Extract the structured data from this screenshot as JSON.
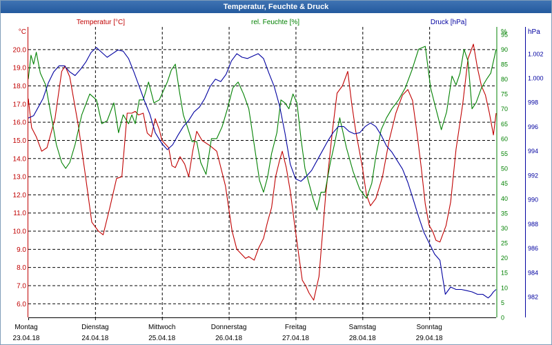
{
  "window": {
    "title": "Temperatur, Feuchte & Druck"
  },
  "colors": {
    "temperature": "#c00000",
    "humidity": "#008000",
    "pressure": "#0000a0",
    "grid": "#000000"
  },
  "chart_data": {
    "type": "line",
    "title": "Temperatur, Feuchte & Druck",
    "grid": true,
    "x_ticks": [
      {
        "day": "Montag",
        "date": "23.04.18"
      },
      {
        "day": "Dienstag",
        "date": "24.04.18"
      },
      {
        "day": "Mittwoch",
        "date": "25.04.18"
      },
      {
        "day": "Donnerstag",
        "date": "26.04.18"
      },
      {
        "day": "Freitag",
        "date": "27.04.18"
      },
      {
        "day": "Samstag",
        "date": "28.04.18"
      },
      {
        "day": "Sonntag",
        "date": "29.04.18"
      }
    ],
    "x_range_days": [
      0,
      7
    ],
    "axes": {
      "temperature": {
        "header": "Temperatur [°C]",
        "unit": "°C",
        "range": [
          5.25,
          21.25
        ],
        "ticks": [
          "6.0",
          "7.0",
          "8.0",
          "9.0",
          "10.0",
          "11.0",
          "12.0",
          "13.0",
          "14.0",
          "15.0",
          "16.0",
          "17.0",
          "18.0",
          "19.0",
          "20.0"
        ]
      },
      "humidity": {
        "header": "rel. Feuchte [%]",
        "unit": "%",
        "range": [
          0,
          97.5
        ],
        "ticks": [
          "0",
          "5",
          "10",
          "15",
          "20",
          "25",
          "30",
          "35",
          "40",
          "45",
          "50",
          "55",
          "60",
          "65",
          "70",
          "75",
          "80",
          "85",
          "90",
          "95"
        ]
      },
      "pressure": {
        "header": "Druck [hPa]",
        "unit": "hPa",
        "range": [
          980.3,
          1004.2
        ],
        "ticks": [
          "982",
          "984",
          "986",
          "988",
          "990",
          "992",
          "994",
          "996",
          "998",
          "1.000",
          "1.002"
        ]
      }
    },
    "series": [
      {
        "name": "Temperatur [°C]",
        "axis": "temperature",
        "x": [
          0,
          0.05,
          0.12,
          0.2,
          0.28,
          0.4,
          0.5,
          0.55,
          0.62,
          0.75,
          0.85,
          0.95,
          1.05,
          1.12,
          1.22,
          1.32,
          1.4,
          1.48,
          1.55,
          1.6,
          1.65,
          1.72,
          1.78,
          1.84,
          1.9,
          1.96,
          2.0,
          2.1,
          2.15,
          2.2,
          2.27,
          2.34,
          2.4,
          2.46,
          2.52,
          2.6,
          2.72,
          2.82,
          2.95,
          3.05,
          3.12,
          3.2,
          3.25,
          3.3,
          3.38,
          3.45,
          3.52,
          3.58,
          3.64,
          3.7,
          3.76,
          3.8,
          3.86,
          3.92,
          3.98,
          4.05,
          4.1,
          4.15,
          4.2,
          4.27,
          4.35,
          4.45,
          4.55,
          4.62,
          4.7,
          4.78,
          4.84,
          4.9,
          5.0,
          5.06,
          5.12,
          5.2,
          5.3,
          5.4,
          5.5,
          5.6,
          5.68,
          5.75,
          5.82,
          5.88,
          5.94,
          6.0,
          6.05,
          6.1,
          6.16,
          6.25,
          6.32,
          6.4,
          6.5,
          6.58,
          6.66,
          6.72,
          6.78,
          6.84,
          6.9,
          6.96,
          7.0
        ],
        "values": [
          17.3,
          15.7,
          15.2,
          14.4,
          14.6,
          16.2,
          18.8,
          19.1,
          18.5,
          15.8,
          13.2,
          10.5,
          10.0,
          9.8,
          11.3,
          12.9,
          13.0,
          16.5,
          16.5,
          16.6,
          16.4,
          16.5,
          15.4,
          15.2,
          16.2,
          15.6,
          15.0,
          14.6,
          13.6,
          13.5,
          14.1,
          13.7,
          13.0,
          14.4,
          15.5,
          15.0,
          14.7,
          14.4,
          12.5,
          10.0,
          9.0,
          8.7,
          8.5,
          8.6,
          8.4,
          9.1,
          9.6,
          10.5,
          11.3,
          13.0,
          13.9,
          14.4,
          13.5,
          12.2,
          10.5,
          8.6,
          7.3,
          7.0,
          6.6,
          6.2,
          7.5,
          12.0,
          15.5,
          17.6,
          18.0,
          18.8,
          17.0,
          15.5,
          13.5,
          12.0,
          11.4,
          11.8,
          13.0,
          15.0,
          16.5,
          17.5,
          17.8,
          17.2,
          15.3,
          13.5,
          11.5,
          10.3,
          10.0,
          9.5,
          9.4,
          10.3,
          11.6,
          14.5,
          17.0,
          19.5,
          20.3,
          19.0,
          18.0,
          17.5,
          16.5,
          15.3,
          16.5
        ]
      },
      {
        "name": "rel. Feuchte [%]",
        "axis": "humidity",
        "x": [
          0,
          0.04,
          0.08,
          0.12,
          0.18,
          0.26,
          0.34,
          0.42,
          0.5,
          0.56,
          0.62,
          0.7,
          0.8,
          0.92,
          1.02,
          1.1,
          1.18,
          1.28,
          1.35,
          1.42,
          1.5,
          1.55,
          1.6,
          1.66,
          1.72,
          1.8,
          1.88,
          1.96,
          2.02,
          2.08,
          2.14,
          2.2,
          2.26,
          2.32,
          2.38,
          2.45,
          2.52,
          2.58,
          2.66,
          2.74,
          2.82,
          2.9,
          2.98,
          3.06,
          3.14,
          3.22,
          3.3,
          3.38,
          3.46,
          3.52,
          3.58,
          3.64,
          3.72,
          3.78,
          3.84,
          3.9,
          3.96,
          4.02,
          4.08,
          4.14,
          4.2,
          4.26,
          4.32,
          4.38,
          4.44,
          4.52,
          4.58,
          4.66,
          4.76,
          4.86,
          4.96,
          5.06,
          5.14,
          5.2,
          5.28,
          5.36,
          5.44,
          5.54,
          5.64,
          5.74,
          5.84,
          5.94,
          6.02,
          6.1,
          6.18,
          6.26,
          6.34,
          6.4,
          6.46,
          6.52,
          6.58,
          6.64,
          6.7,
          6.78,
          6.86,
          6.92,
          6.98,
          7.0
        ],
        "values": [
          80,
          88,
          85,
          89,
          82,
          78,
          68,
          58,
          52,
          50,
          52,
          58,
          68,
          75,
          73,
          65,
          66,
          72,
          62,
          68,
          65,
          68,
          65,
          73,
          73,
          79,
          72,
          73,
          76,
          79,
          83,
          85,
          76,
          68,
          64,
          59,
          59,
          52,
          48,
          60,
          60,
          64,
          70,
          77,
          79,
          75,
          70,
          58,
          46,
          42,
          47,
          55,
          62,
          73,
          72,
          70,
          75,
          72,
          60,
          50,
          45,
          40,
          36,
          42,
          42,
          52,
          58,
          67,
          57,
          49,
          43,
          40,
          45,
          54,
          63,
          67,
          70,
          73,
          77,
          83,
          90,
          91,
          77,
          70,
          63,
          69,
          81,
          78,
          82,
          90,
          86,
          70,
          72,
          77,
          80,
          82,
          88,
          90
        ]
      },
      {
        "name": "Druck [hPa]",
        "axis": "pressure",
        "x": [
          0,
          0.08,
          0.15,
          0.22,
          0.3,
          0.38,
          0.46,
          0.54,
          0.62,
          0.7,
          0.78,
          0.86,
          0.94,
          1.02,
          1.1,
          1.18,
          1.26,
          1.34,
          1.42,
          1.5,
          1.58,
          1.66,
          1.74,
          1.82,
          1.9,
          2.0,
          2.08,
          2.16,
          2.24,
          2.32,
          2.4,
          2.48,
          2.56,
          2.64,
          2.72,
          2.8,
          2.88,
          2.96,
          3.04,
          3.12,
          3.2,
          3.28,
          3.36,
          3.44,
          3.52,
          3.6,
          3.68,
          3.76,
          3.84,
          3.92,
          4.0,
          4.08,
          4.16,
          4.24,
          4.32,
          4.4,
          4.48,
          4.56,
          4.64,
          4.72,
          4.8,
          4.88,
          4.96,
          5.04,
          5.12,
          5.2,
          5.28,
          5.36,
          5.44,
          5.52,
          5.6,
          5.68,
          5.76,
          5.84,
          5.92,
          6.0,
          6.08,
          6.16,
          6.24,
          6.32,
          6.4,
          6.48,
          6.56,
          6.64,
          6.72,
          6.8,
          6.88,
          6.92,
          6.96,
          7.0
        ],
        "values": [
          996.7,
          996.9,
          997.6,
          998.3,
          999.6,
          1000.5,
          1001.0,
          1001.0,
          1000.5,
          1000.2,
          1000.7,
          1001.3,
          1002.1,
          1002.5,
          1002.1,
          1001.7,
          1002.0,
          1002.3,
          1002.2,
          1001.6,
          1000.5,
          999.3,
          998.1,
          997.0,
          995.5,
          994.6,
          994.1,
          994.5,
          995.3,
          996.0,
          996.5,
          997.2,
          997.6,
          998.3,
          999.3,
          999.9,
          999.7,
          1000.3,
          1001.4,
          1002.0,
          1001.7,
          1001.6,
          1001.8,
          1002.0,
          1001.6,
          1000.4,
          999.3,
          997.7,
          995.5,
          992.9,
          991.7,
          991.5,
          991.9,
          992.4,
          993.2,
          994.0,
          994.8,
          995.5,
          996.0,
          996.0,
          995.6,
          995.4,
          995.5,
          996.0,
          996.3,
          996.0,
          995.3,
          994.4,
          993.9,
          993.2,
          992.5,
          991.4,
          990.0,
          988.6,
          987.3,
          986.4,
          985.5,
          985.0,
          982.2,
          982.8,
          982.6,
          982.6,
          982.5,
          982.4,
          982.2,
          982.2,
          981.9,
          982.1,
          982.4,
          982.6
        ]
      }
    ]
  }
}
